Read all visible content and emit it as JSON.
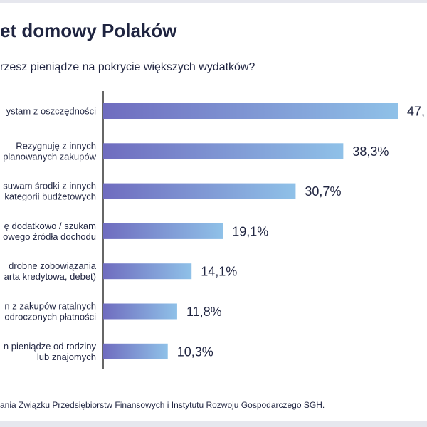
{
  "header": {
    "title": "et domowy Polaków",
    "subtitle": "rzesz pieniądze na pokrycie większych wydatków?"
  },
  "footer": {
    "source": "ania Związku Przedsiębiorstw Finansowych i Instytutu Rozwoju Gospodarczego SGH."
  },
  "colors": {
    "bar_start": "#6f6cbf",
    "bar_end": "#8fc1e8",
    "axis": "#333333",
    "text": "#1f2440"
  },
  "chart_data": {
    "type": "bar",
    "orientation": "horizontal",
    "title": "et domowy Polaków",
    "categories": [
      [
        "ystam z oszczędności"
      ],
      [
        "Rezygnuję z innych",
        "planowanych zakupów"
      ],
      [
        "suwam środki z innych",
        "kategorii budżetowych"
      ],
      [
        "ę dodatkowo / szukam",
        "owego źródła dochodu"
      ],
      [
        "drobne zobowiązania",
        "arta kredytowa, debet)"
      ],
      [
        "n z zakupów ratalnych",
        "odroczonych płatności"
      ],
      [
        "n pieniądze od rodziny",
        "lub znajomych"
      ]
    ],
    "values": [
      47.0,
      38.3,
      30.7,
      19.1,
      14.1,
      11.8,
      10.3
    ],
    "value_labels": [
      "47,",
      "38,3%",
      "30,7%",
      "19,1%",
      "14,1%",
      "11,8%",
      "10,3%"
    ],
    "xlim": [
      0,
      47
    ],
    "grid": false,
    "legend": "none"
  }
}
